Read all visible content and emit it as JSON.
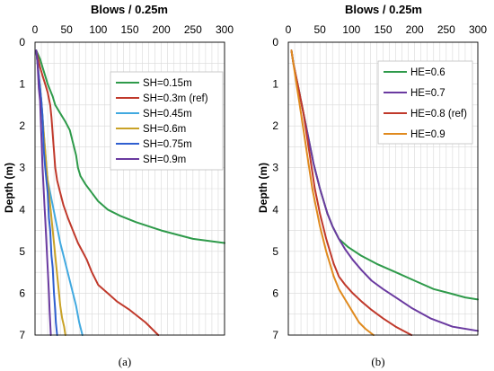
{
  "chart_data": [
    {
      "type": "line",
      "title": "Blows / 0.25m",
      "caption": "(a)",
      "xlabel": "",
      "ylabel": "Depth (m)",
      "xlim": [
        0,
        300
      ],
      "ylim": [
        0,
        7
      ],
      "y_inverted": true,
      "x_ticks": [
        "0",
        "50",
        "100",
        "150",
        "200",
        "250",
        "300"
      ],
      "y_ticks": [
        "0",
        "1",
        "2",
        "3",
        "4",
        "5",
        "6",
        "7"
      ],
      "grid": true,
      "legend": "upper-right",
      "series": [
        {
          "name": "SH=0.15m",
          "color": "#2e9a4a",
          "x": [
            2,
            8,
            12,
            16,
            20,
            28,
            32,
            40,
            48,
            55,
            60,
            65,
            68,
            72,
            80,
            90,
            100,
            115,
            135,
            160,
            200,
            250,
            300
          ],
          "y": [
            0.2,
            0.4,
            0.6,
            0.8,
            1.0,
            1.3,
            1.5,
            1.7,
            1.9,
            2.1,
            2.4,
            2.7,
            3.0,
            3.2,
            3.4,
            3.6,
            3.8,
            4.0,
            4.15,
            4.3,
            4.5,
            4.7,
            4.8
          ]
        },
        {
          "name": "SH=0.3m (ref)",
          "color": "#c0392b",
          "x": [
            2,
            5,
            8,
            12,
            16,
            20,
            24,
            26,
            28,
            30,
            32,
            35,
            40,
            45,
            52,
            60,
            68,
            75,
            82,
            90,
            100,
            115,
            130,
            150,
            175,
            195
          ],
          "y": [
            0.2,
            0.4,
            0.6,
            0.8,
            1.0,
            1.2,
            1.5,
            1.8,
            2.2,
            2.6,
            3.0,
            3.3,
            3.6,
            3.9,
            4.2,
            4.5,
            4.8,
            5.0,
            5.2,
            5.5,
            5.8,
            6.0,
            6.2,
            6.4,
            6.7,
            7.0
          ]
        },
        {
          "name": "SH=0.45m",
          "color": "#41a9e0",
          "x": [
            2,
            4,
            6,
            8,
            10,
            12,
            14,
            16,
            18,
            20,
            24,
            28,
            32,
            36,
            40,
            45,
            50,
            55,
            60,
            65,
            70,
            75
          ],
          "y": [
            0.2,
            0.5,
            0.8,
            1.1,
            1.4,
            1.8,
            2.2,
            2.6,
            3.0,
            3.3,
            3.6,
            3.9,
            4.2,
            4.5,
            4.8,
            5.1,
            5.4,
            5.7,
            6.0,
            6.3,
            6.7,
            7.0
          ]
        },
        {
          "name": "SH=0.6m",
          "color": "#c9a227",
          "x": [
            2,
            4,
            6,
            8,
            10,
            12,
            14,
            16,
            18,
            20,
            22,
            24,
            26,
            28,
            30,
            32,
            34,
            36,
            38,
            40,
            43,
            46,
            48
          ],
          "y": [
            0.2,
            0.5,
            0.8,
            1.1,
            1.4,
            1.8,
            2.2,
            2.6,
            3.0,
            3.3,
            3.6,
            3.9,
            4.2,
            4.5,
            4.8,
            5.1,
            5.4,
            5.7,
            6.0,
            6.3,
            6.6,
            6.8,
            7.0
          ]
        },
        {
          "name": "SH=0.75m",
          "color": "#2f5fd0",
          "x": [
            2,
            4,
            6,
            8,
            10,
            12,
            13,
            14,
            16,
            18,
            20,
            21,
            22,
            24,
            25,
            26,
            28,
            29,
            30,
            32,
            33,
            35
          ],
          "y": [
            0.2,
            0.5,
            0.8,
            1.1,
            1.4,
            1.8,
            2.2,
            2.6,
            3.0,
            3.3,
            3.6,
            3.9,
            4.2,
            4.5,
            4.8,
            5.1,
            5.4,
            5.7,
            6.0,
            6.4,
            6.7,
            7.0
          ]
        },
        {
          "name": "SH=0.9m",
          "color": "#6a3aa0",
          "x": [
            2,
            4,
            5,
            6,
            8,
            9,
            10,
            11,
            12,
            13,
            14,
            15,
            16,
            17,
            18,
            19,
            20,
            21,
            22,
            23,
            24,
            25
          ],
          "y": [
            0.2,
            0.5,
            0.8,
            1.1,
            1.4,
            1.8,
            2.2,
            2.6,
            3.0,
            3.3,
            3.6,
            3.9,
            4.2,
            4.5,
            4.8,
            5.1,
            5.4,
            5.7,
            6.0,
            6.4,
            6.7,
            7.0
          ]
        }
      ]
    },
    {
      "type": "line",
      "title": "Blows / 0.25m",
      "caption": "(b)",
      "xlabel": "",
      "ylabel": "Depth (m)",
      "xlim": [
        0,
        300
      ],
      "ylim": [
        0,
        7
      ],
      "y_inverted": true,
      "x_ticks": [
        "0",
        "50",
        "100",
        "150",
        "200",
        "250",
        "300"
      ],
      "y_ticks": [
        "0",
        "1",
        "2",
        "3",
        "4",
        "5",
        "6",
        "7"
      ],
      "grid": true,
      "legend": "upper-right",
      "series": [
        {
          "name": "HE=0.6",
          "color": "#2e9a4a",
          "x": [
            5,
            8,
            12,
            16,
            20,
            24,
            28,
            32,
            36,
            40,
            45,
            50,
            56,
            62,
            70,
            80,
            95,
            115,
            140,
            170,
            200,
            230,
            255,
            280,
            300
          ],
          "y": [
            0.2,
            0.5,
            0.8,
            1.1,
            1.4,
            1.7,
            2.0,
            2.3,
            2.6,
            2.9,
            3.2,
            3.5,
            3.8,
            4.1,
            4.4,
            4.7,
            4.9,
            5.1,
            5.3,
            5.5,
            5.7,
            5.9,
            6.0,
            6.1,
            6.15
          ]
        },
        {
          "name": "HE=0.7",
          "color": "#6a3aa0",
          "x": [
            5,
            8,
            12,
            16,
            20,
            24,
            28,
            32,
            36,
            40,
            45,
            50,
            56,
            62,
            70,
            80,
            90,
            102,
            116,
            132,
            150,
            170,
            195,
            225,
            260,
            300
          ],
          "y": [
            0.2,
            0.5,
            0.8,
            1.1,
            1.4,
            1.7,
            2.0,
            2.3,
            2.6,
            2.9,
            3.2,
            3.5,
            3.8,
            4.1,
            4.4,
            4.7,
            4.95,
            5.2,
            5.45,
            5.7,
            5.9,
            6.1,
            6.35,
            6.6,
            6.8,
            6.9
          ]
        },
        {
          "name": "HE=0.8 (ref)",
          "color": "#c0392b",
          "x": [
            5,
            8,
            12,
            16,
            20,
            24,
            27,
            30,
            33,
            36,
            39,
            42,
            46,
            50,
            55,
            60,
            66,
            72,
            80,
            90,
            102,
            116,
            132,
            150,
            170,
            195
          ],
          "y": [
            0.2,
            0.5,
            0.8,
            1.1,
            1.4,
            1.7,
            2.0,
            2.3,
            2.6,
            2.9,
            3.2,
            3.5,
            3.8,
            4.1,
            4.4,
            4.7,
            5.0,
            5.3,
            5.6,
            5.8,
            6.0,
            6.2,
            6.4,
            6.6,
            6.8,
            7.0
          ]
        },
        {
          "name": "HE=0.9",
          "color": "#e08a1e",
          "x": [
            5,
            8,
            11,
            14,
            17,
            20,
            23,
            26,
            29,
            32,
            35,
            38,
            42,
            46,
            50,
            55,
            60,
            66,
            72,
            80,
            88,
            96,
            104,
            112,
            122,
            135
          ],
          "y": [
            0.2,
            0.5,
            0.8,
            1.1,
            1.4,
            1.7,
            2.0,
            2.3,
            2.6,
            2.9,
            3.2,
            3.5,
            3.8,
            4.1,
            4.4,
            4.7,
            5.0,
            5.3,
            5.6,
            5.9,
            6.1,
            6.3,
            6.5,
            6.7,
            6.85,
            7.0
          ]
        }
      ]
    }
  ]
}
